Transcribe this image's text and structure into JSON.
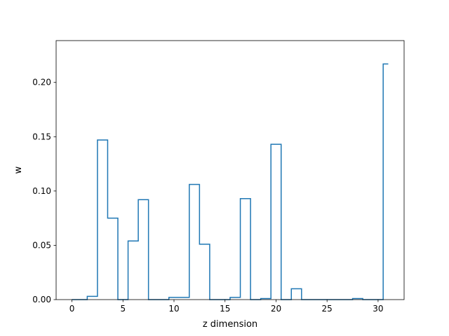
{
  "chart_data": {
    "type": "line",
    "drawstyle": "steps-mid",
    "title": "",
    "xlabel": "z dimension",
    "ylabel": "w",
    "xlim": [
      -1.55,
      32.55
    ],
    "ylim": [
      0,
      0.2385
    ],
    "xticks": [
      0,
      5,
      10,
      15,
      20,
      25,
      30
    ],
    "xtick_labels": [
      "0",
      "5",
      "10",
      "15",
      "20",
      "25",
      "30"
    ],
    "yticks": [
      0.0,
      0.05,
      0.1,
      0.15,
      0.2
    ],
    "ytick_labels": [
      "0.00",
      "0.05",
      "0.10",
      "0.15",
      "0.20"
    ],
    "grid": false,
    "series": [
      {
        "color": "#1f77b4",
        "x": [
          0,
          1,
          2,
          3,
          4,
          5,
          6,
          7,
          8,
          9,
          10,
          11,
          12,
          13,
          14,
          15,
          16,
          17,
          18,
          19,
          20,
          21,
          22,
          23,
          24,
          25,
          26,
          27,
          28,
          29,
          30,
          31
        ],
        "values": [
          0.0,
          0.0,
          0.003,
          0.147,
          0.075,
          0.0,
          0.054,
          0.092,
          0.0,
          0.0,
          0.002,
          0.002,
          0.106,
          0.051,
          0.0,
          0.0,
          0.002,
          0.093,
          0.0,
          0.001,
          0.143,
          0.0,
          0.01,
          0.0,
          0.0,
          0.0,
          0.0,
          0.0,
          0.001,
          0.0,
          0.0,
          0.217
        ]
      }
    ]
  }
}
